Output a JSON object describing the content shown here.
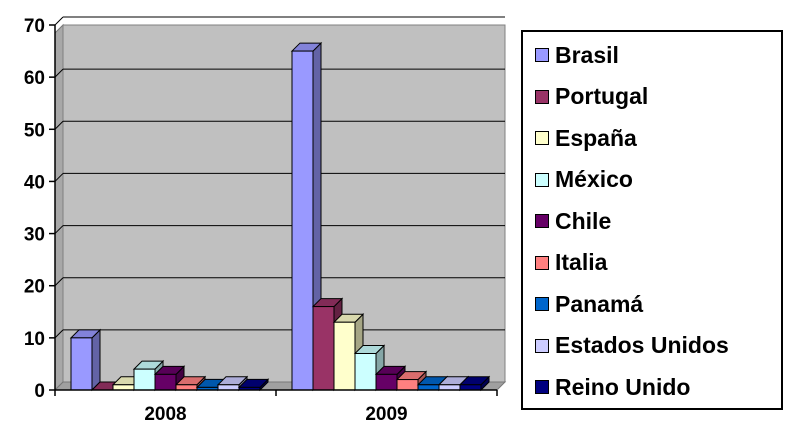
{
  "chart_data": {
    "type": "bar",
    "categories": [
      "2008",
      "2009"
    ],
    "y_ticks": [
      "0",
      "10",
      "20",
      "30",
      "40",
      "50",
      "60",
      "70"
    ],
    "ylim": [
      0,
      70
    ],
    "grid": true,
    "legend_position": "right",
    "series": [
      {
        "name": "Brasil",
        "color": "#9999ff",
        "values": [
          10,
          65
        ]
      },
      {
        "name": "Portugal",
        "color": "#993366",
        "values": [
          0,
          16
        ]
      },
      {
        "name": "España",
        "color": "#ffffcc",
        "values": [
          1,
          13
        ]
      },
      {
        "name": "México",
        "color": "#ccffff",
        "values": [
          4,
          7
        ]
      },
      {
        "name": "Chile",
        "color": "#660066",
        "values": [
          3,
          3
        ]
      },
      {
        "name": "Italia",
        "color": "#ff8080",
        "values": [
          1,
          2
        ]
      },
      {
        "name": "Panamá",
        "color": "#0066cc",
        "values": [
          0.5,
          1
        ]
      },
      {
        "name": "Estados Unidos",
        "color": "#ccccff",
        "values": [
          1,
          1
        ]
      },
      {
        "name": "Reino Unido",
        "color": "#000080",
        "values": [
          0.5,
          1
        ]
      }
    ]
  }
}
